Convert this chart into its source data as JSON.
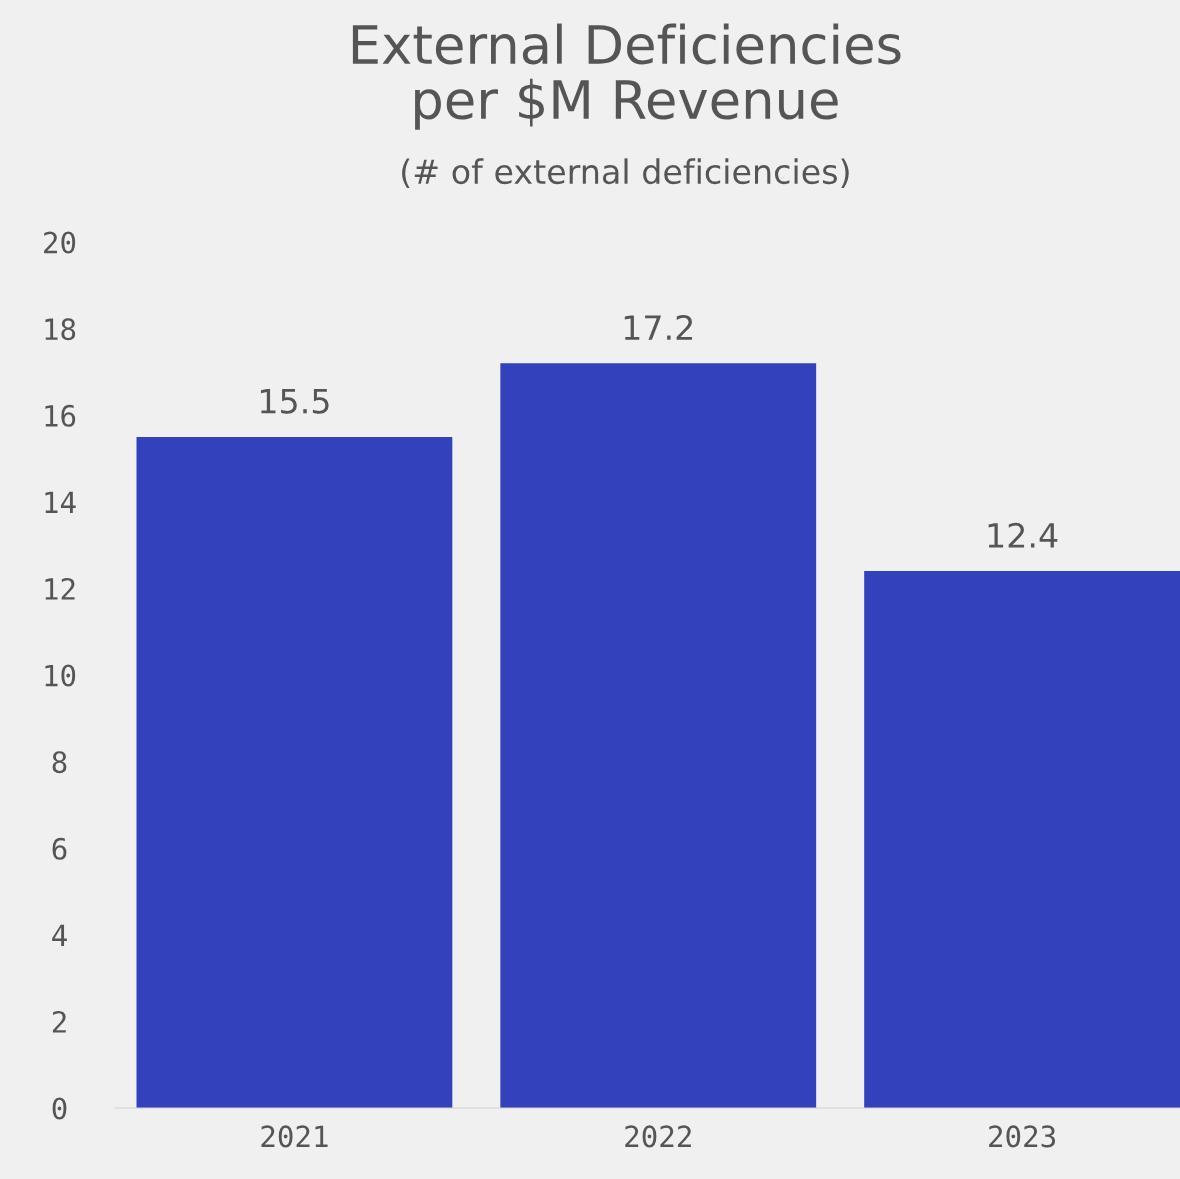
{
  "chart_data": {
    "type": "bar",
    "title": "External Deficiencies\nper $M Revenue",
    "subtitle": "(# of external deficiencies)",
    "categories": [
      "2021",
      "2022",
      "2023"
    ],
    "values": [
      15.5,
      17.2,
      12.4
    ],
    "color": "#3341bd",
    "ylim": [
      0,
      20
    ],
    "yticks": [
      0,
      2,
      4,
      6,
      8,
      10,
      12,
      14,
      16,
      18,
      20
    ],
    "grid": false,
    "data_labels": true
  }
}
